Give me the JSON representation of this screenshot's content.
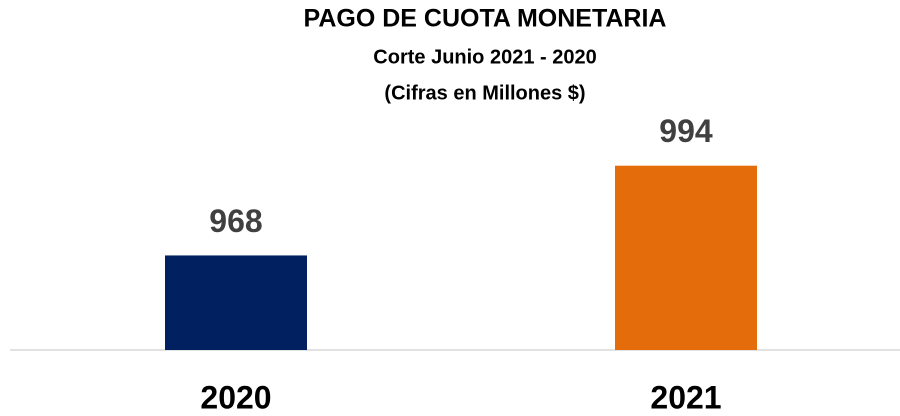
{
  "chart_data": {
    "type": "bar",
    "title": "PAGO DE CUOTA MONETARIA",
    "subtitle": [
      "Corte Junio 2021 - 2020",
      "(Cifras en Millones $)"
    ],
    "categories": [
      "2020",
      "2021"
    ],
    "values": [
      968,
      994
    ],
    "colors": [
      "#002060",
      "#e46c0a"
    ],
    "ylim": [
      940.6,
      1000
    ]
  }
}
